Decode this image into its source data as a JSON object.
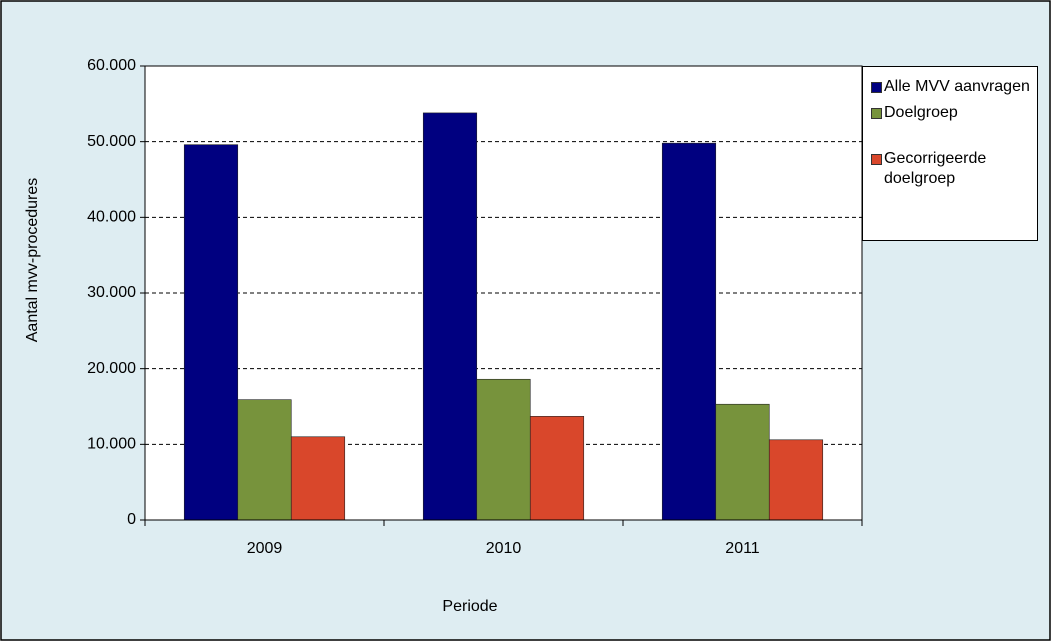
{
  "chart_data": {
    "type": "bar",
    "x_label": "Periode",
    "y_label": "Aantal mvv-procedures",
    "categories": [
      "2009",
      "2010",
      "2011"
    ],
    "series": [
      {
        "name": "Alle MVV aanvragen",
        "color": "#000080",
        "values": [
          49600,
          53800,
          49800
        ]
      },
      {
        "name": "Doelgroep",
        "color": "#77933c",
        "values": [
          15900,
          18600,
          15300
        ]
      },
      {
        "name": "Gecorrigeerde doelgroep",
        "color": "#d9472b",
        "values": [
          11000,
          13700,
          10600
        ]
      }
    ],
    "ylim": [
      0,
      60000
    ],
    "yticks": [
      0,
      {
        "value": 10000,
        "label": "10.000"
      },
      {
        "value": 20000,
        "label": "20.000"
      },
      {
        "value": 30000,
        "label": "30.000"
      },
      {
        "value": 40000,
        "label": "40.000"
      },
      {
        "value": 50000,
        "label": "50.000"
      },
      {
        "value": 60000,
        "label": "60.000"
      }
    ],
    "grid": true,
    "legend": "right"
  }
}
